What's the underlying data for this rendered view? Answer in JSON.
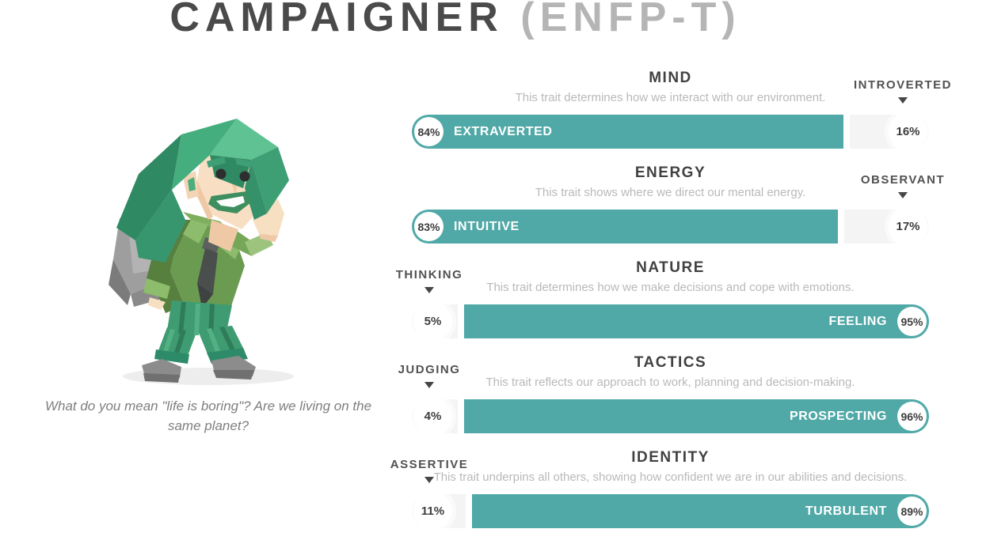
{
  "header": {
    "name": "CAMPAIGNER",
    "code": "(ENFP-T)"
  },
  "figure": {
    "illustration": "campaigner-walking-character",
    "caption": "What do you mean \"life is boring\"? Are we living on the same planet?"
  },
  "colors": {
    "trait_accent_teal": "#50a9a7",
    "losing_bar_gray": "#f4f4f4",
    "title_dark": "#4a4a4a",
    "title_light": "#b5b5b5",
    "description_gray": "#b9b9b9"
  },
  "traits": [
    {
      "title": "MIND",
      "description": "This trait determines how we interact with our environment.",
      "winner": {
        "label": "EXTRAVERTED",
        "pct": 84,
        "pct_label": "84%"
      },
      "loser": {
        "label": "INTROVERTED",
        "pct": 16,
        "pct_label": "16%"
      },
      "winner_side": "left"
    },
    {
      "title": "ENERGY",
      "description": "This trait shows where we direct our mental energy.",
      "winner": {
        "label": "INTUITIVE",
        "pct": 83,
        "pct_label": "83%"
      },
      "loser": {
        "label": "OBSERVANT",
        "pct": 17,
        "pct_label": "17%"
      },
      "winner_side": "left"
    },
    {
      "title": "NATURE",
      "description": "This trait determines how we make decisions and cope with emotions.",
      "winner": {
        "label": "FEELING",
        "pct": 95,
        "pct_label": "95%"
      },
      "loser": {
        "label": "THINKING",
        "pct": 5,
        "pct_label": "5%"
      },
      "winner_side": "right"
    },
    {
      "title": "TACTICS",
      "description": "This trait reflects our approach to work, planning and decision-making.",
      "winner": {
        "label": "PROSPECTING",
        "pct": 96,
        "pct_label": "96%"
      },
      "loser": {
        "label": "JUDGING",
        "pct": 4,
        "pct_label": "4%"
      },
      "winner_side": "right"
    },
    {
      "title": "IDENTITY",
      "description": "This trait underpins all others, showing how confident we are in our abilities and decisions.",
      "winner": {
        "label": "TURBULENT",
        "pct": 89,
        "pct_label": "89%"
      },
      "loser": {
        "label": "ASSERTIVE",
        "pct": 11,
        "pct_label": "11%"
      },
      "winner_side": "right"
    }
  ]
}
